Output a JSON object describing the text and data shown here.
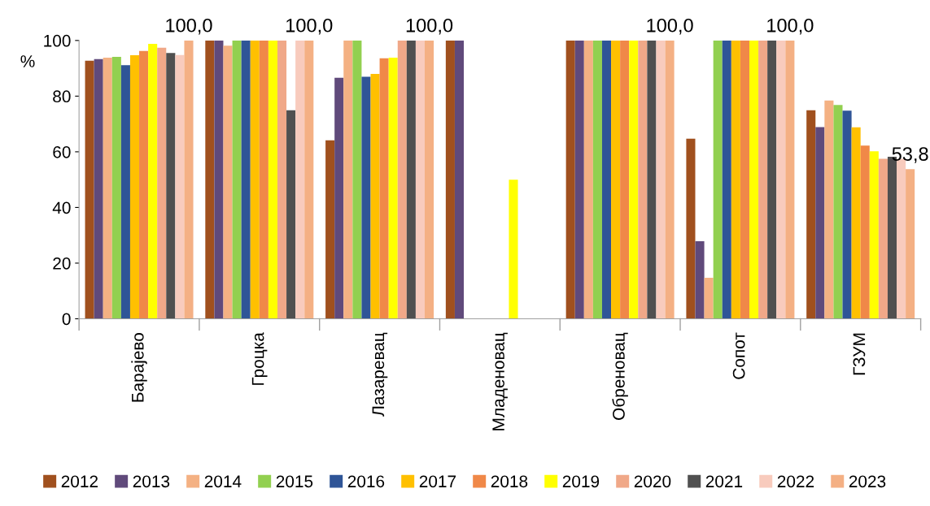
{
  "chart_data": {
    "type": "bar",
    "ylabel": "%",
    "categories": [
      "Барајево",
      "Гроцка",
      "Лазаревац",
      "Младеновац",
      "Обреновац",
      "Сопот",
      "ГЗУМ"
    ],
    "series": [
      {
        "name": "2012",
        "color": "#a0501e",
        "values": [
          92.7,
          100,
          64.1,
          100,
          100,
          64.7,
          74.9
        ]
      },
      {
        "name": "2013",
        "color": "#604a7b",
        "values": [
          93.3,
          100,
          86.6,
          100,
          100,
          27.9,
          68.9
        ]
      },
      {
        "name": "2014",
        "color": "#f4b183",
        "values": [
          93.8,
          98.1,
          100,
          null,
          100,
          14.7,
          78.4
        ]
      },
      {
        "name": "2015",
        "color": "#92d050",
        "values": [
          94.1,
          100,
          100,
          null,
          100,
          100,
          76.8
        ]
      },
      {
        "name": "2016",
        "color": "#2f5597",
        "values": [
          91.1,
          100,
          87.0,
          null,
          100,
          100,
          74.8
        ]
      },
      {
        "name": "2017",
        "color": "#ffc000",
        "values": [
          94.7,
          100,
          88.0,
          null,
          100,
          100,
          68.8
        ]
      },
      {
        "name": "2018",
        "color": "#f08848",
        "values": [
          96.2,
          100,
          93.6,
          null,
          100,
          100,
          62.2
        ]
      },
      {
        "name": "2019",
        "color": "#ffff00",
        "values": [
          98.8,
          100,
          93.8,
          50,
          100,
          100,
          60.2
        ]
      },
      {
        "name": "2020",
        "color": "#f0a888",
        "values": [
          97.4,
          100,
          100,
          null,
          100,
          100,
          57.5
        ]
      },
      {
        "name": "2021",
        "color": "#505050",
        "values": [
          95.5,
          74.9,
          100,
          null,
          100,
          100,
          58.2
        ]
      },
      {
        "name": "2022",
        "color": "#f8cbbd",
        "values": [
          94.8,
          100,
          100,
          null,
          100,
          100,
          57.5
        ]
      },
      {
        "name": "2023",
        "color": "#f4b084",
        "values": [
          100,
          100,
          100,
          null,
          100,
          100,
          53.8
        ],
        "value_labels": [
          "100,0",
          "100,0",
          "100,0",
          null,
          "100,0",
          "100,0",
          "53,8"
        ]
      }
    ],
    "ylim": [
      0,
      100
    ],
    "yticks": [
      0,
      20,
      40,
      60,
      80,
      100
    ],
    "grid": false,
    "legend": "bottom"
  }
}
